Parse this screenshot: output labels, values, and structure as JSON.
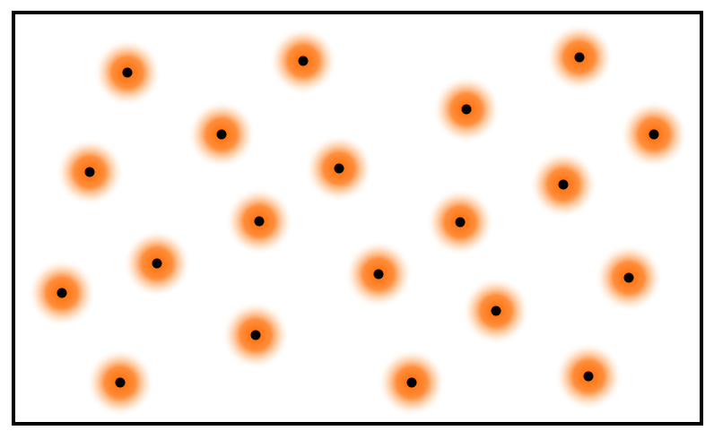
{
  "figure": {
    "frame_color": "#000000",
    "glow_color": "#ff6a00",
    "dot_color": "#000000",
    "background": "#ffffff"
  },
  "particles": [
    {
      "id": 1
    },
    {
      "id": 2
    },
    {
      "id": 3
    },
    {
      "id": 4
    },
    {
      "id": 5
    },
    {
      "id": 6
    },
    {
      "id": 7
    },
    {
      "id": 8
    },
    {
      "id": 9
    },
    {
      "id": 10
    },
    {
      "id": 11
    },
    {
      "id": 12
    },
    {
      "id": 13
    },
    {
      "id": 14
    },
    {
      "id": 15
    },
    {
      "id": 16
    },
    {
      "id": 17
    },
    {
      "id": 18
    },
    {
      "id": 19
    },
    {
      "id": 20
    },
    {
      "id": 21
    },
    {
      "id": 22
    },
    {
      "id": 23
    }
  ]
}
